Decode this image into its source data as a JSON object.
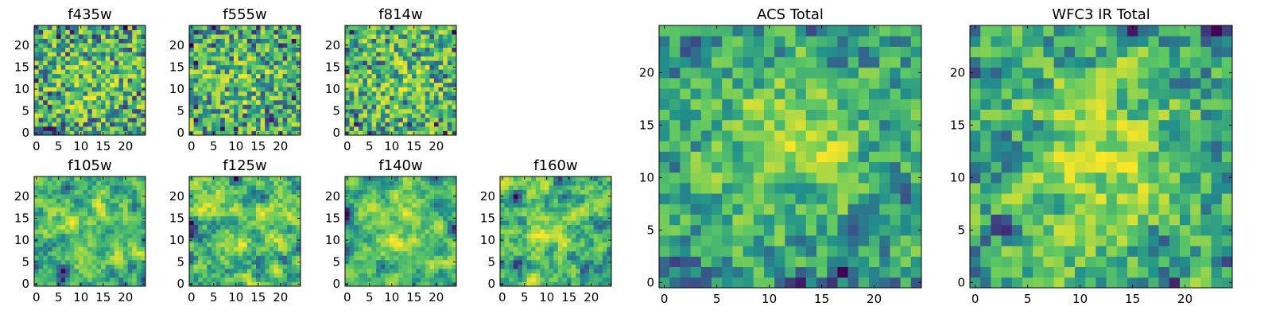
{
  "chart_data": [
    {
      "type": "heatmap",
      "title": "f435w",
      "x_ticks": [
        "0",
        "5",
        "10",
        "15",
        "20"
      ],
      "y_ticks": [
        "0",
        "5",
        "10",
        "15",
        "20"
      ],
      "xlim": [
        -0.5,
        24.5
      ],
      "ylim": [
        -0.5,
        24.5
      ],
      "grid_size": [
        25,
        25
      ],
      "colormap": "viridis",
      "grid": false
    },
    {
      "type": "heatmap",
      "title": "f555w",
      "x_ticks": [
        "0",
        "5",
        "10",
        "15",
        "20"
      ],
      "y_ticks": [
        "0",
        "5",
        "10",
        "15",
        "20"
      ],
      "xlim": [
        -0.5,
        24.5
      ],
      "ylim": [
        -0.5,
        24.5
      ],
      "grid_size": [
        25,
        25
      ],
      "colormap": "viridis",
      "grid": false
    },
    {
      "type": "heatmap",
      "title": "f814w",
      "x_ticks": [
        "0",
        "5",
        "10",
        "15",
        "20"
      ],
      "y_ticks": [
        "0",
        "5",
        "10",
        "15",
        "20"
      ],
      "xlim": [
        -0.5,
        24.5
      ],
      "ylim": [
        -0.5,
        24.5
      ],
      "grid_size": [
        25,
        25
      ],
      "colormap": "viridis",
      "grid": false
    },
    {
      "type": "heatmap",
      "title": "f105w",
      "x_ticks": [
        "0",
        "5",
        "10",
        "15",
        "20"
      ],
      "y_ticks": [
        "0",
        "5",
        "10",
        "15",
        "20"
      ],
      "xlim": [
        -0.5,
        24.5
      ],
      "ylim": [
        -0.5,
        24.5
      ],
      "grid_size": [
        25,
        25
      ],
      "colormap": "viridis",
      "grid": false
    },
    {
      "type": "heatmap",
      "title": "f125w",
      "x_ticks": [
        "0",
        "5",
        "10",
        "15",
        "20"
      ],
      "y_ticks": [
        "0",
        "5",
        "10",
        "15",
        "20"
      ],
      "xlim": [
        -0.5,
        24.5
      ],
      "ylim": [
        -0.5,
        24.5
      ],
      "grid_size": [
        25,
        25
      ],
      "colormap": "viridis",
      "grid": false
    },
    {
      "type": "heatmap",
      "title": "f140w",
      "x_ticks": [
        "0",
        "5",
        "10",
        "15",
        "20"
      ],
      "y_ticks": [
        "0",
        "5",
        "10",
        "15",
        "20"
      ],
      "xlim": [
        -0.5,
        24.5
      ],
      "ylim": [
        -0.5,
        24.5
      ],
      "grid_size": [
        25,
        25
      ],
      "colormap": "viridis",
      "grid": false
    },
    {
      "type": "heatmap",
      "title": "f160w",
      "x_ticks": [
        "0",
        "5",
        "10",
        "15",
        "20"
      ],
      "y_ticks": [
        "0",
        "5",
        "10",
        "15",
        "20"
      ],
      "xlim": [
        -0.5,
        24.5
      ],
      "ylim": [
        -0.5,
        24.5
      ],
      "grid_size": [
        25,
        25
      ],
      "colormap": "viridis",
      "grid": false
    },
    {
      "type": "heatmap",
      "title": "ACS Total",
      "x_ticks": [
        "0",
        "5",
        "10",
        "15",
        "20"
      ],
      "y_ticks": [
        "0",
        "5",
        "10",
        "15",
        "20"
      ],
      "xlim": [
        -0.5,
        24.5
      ],
      "ylim": [
        -0.5,
        24.5
      ],
      "grid_size": [
        25,
        25
      ],
      "colormap": "viridis",
      "grid": false
    },
    {
      "type": "heatmap",
      "title": "WFC3 IR Total",
      "x_ticks": [
        "0",
        "5",
        "10",
        "15",
        "20"
      ],
      "y_ticks": [
        "0",
        "5",
        "10",
        "15",
        "20"
      ],
      "xlim": [
        -0.5,
        24.5
      ],
      "ylim": [
        -0.5,
        24.5
      ],
      "grid_size": [
        25,
        25
      ],
      "colormap": "viridis",
      "grid": false
    }
  ],
  "colors": {
    "viridis_low": "#440154",
    "viridis_mid": "#21918c",
    "viridis_high": "#fde725",
    "axes": "#000000",
    "background": "#ffffff"
  }
}
